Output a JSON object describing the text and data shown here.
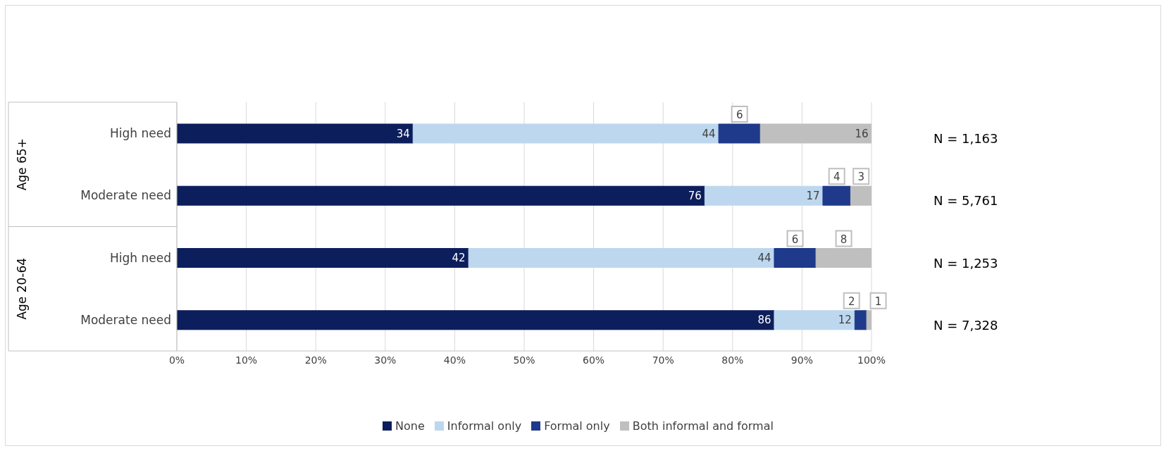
{
  "chart_data": {
    "type": "bar",
    "orientation": "horizontal",
    "stacked": true,
    "categories": [
      "High need",
      "Moderate need",
      "High need",
      "Moderate need"
    ],
    "series": [
      {
        "name": "None",
        "color": "#0c1e5b",
        "values": [
          34,
          76,
          42,
          86
        ],
        "value_labels": [
          "34",
          "76",
          "42",
          "86"
        ]
      },
      {
        "name": "Informal only",
        "color": "#bdd7ee",
        "values": [
          44,
          17,
          44,
          11.6
        ],
        "value_labels": [
          "44",
          "17",
          "44",
          "12"
        ]
      },
      {
        "name": "Formal only",
        "color": "#1f3a8a",
        "values": [
          6,
          4,
          6,
          1.7
        ],
        "value_labels": [
          "6",
          "4",
          "6",
          "2"
        ]
      },
      {
        "name": "Both informal and formal",
        "color": "#bfbfbf",
        "values": [
          16,
          3,
          8,
          0.7
        ],
        "value_labels": [
          "16",
          "3",
          "8",
          "1"
        ]
      }
    ],
    "xlim": [
      0,
      100
    ],
    "xticks": [
      {
        "value": 0,
        "label": "0%"
      },
      {
        "value": 10,
        "label": "10%"
      },
      {
        "value": 20,
        "label": "20%"
      },
      {
        "value": 30,
        "label": "30%"
      },
      {
        "value": 40,
        "label": "40%"
      },
      {
        "value": 50,
        "label": "50%"
      },
      {
        "value": 60,
        "label": "60%"
      },
      {
        "value": 70,
        "label": "70%"
      },
      {
        "value": 80,
        "label": "80%"
      },
      {
        "value": 90,
        "label": "90%"
      },
      {
        "value": 100,
        "label": "100%"
      }
    ],
    "grid": "x",
    "legend": "bottom",
    "annotations": [
      "Age 65+",
      "Age 20-64",
      "N = 1,163",
      "N = 5,761",
      "N = 1,253",
      "N = 7,328"
    ]
  }
}
